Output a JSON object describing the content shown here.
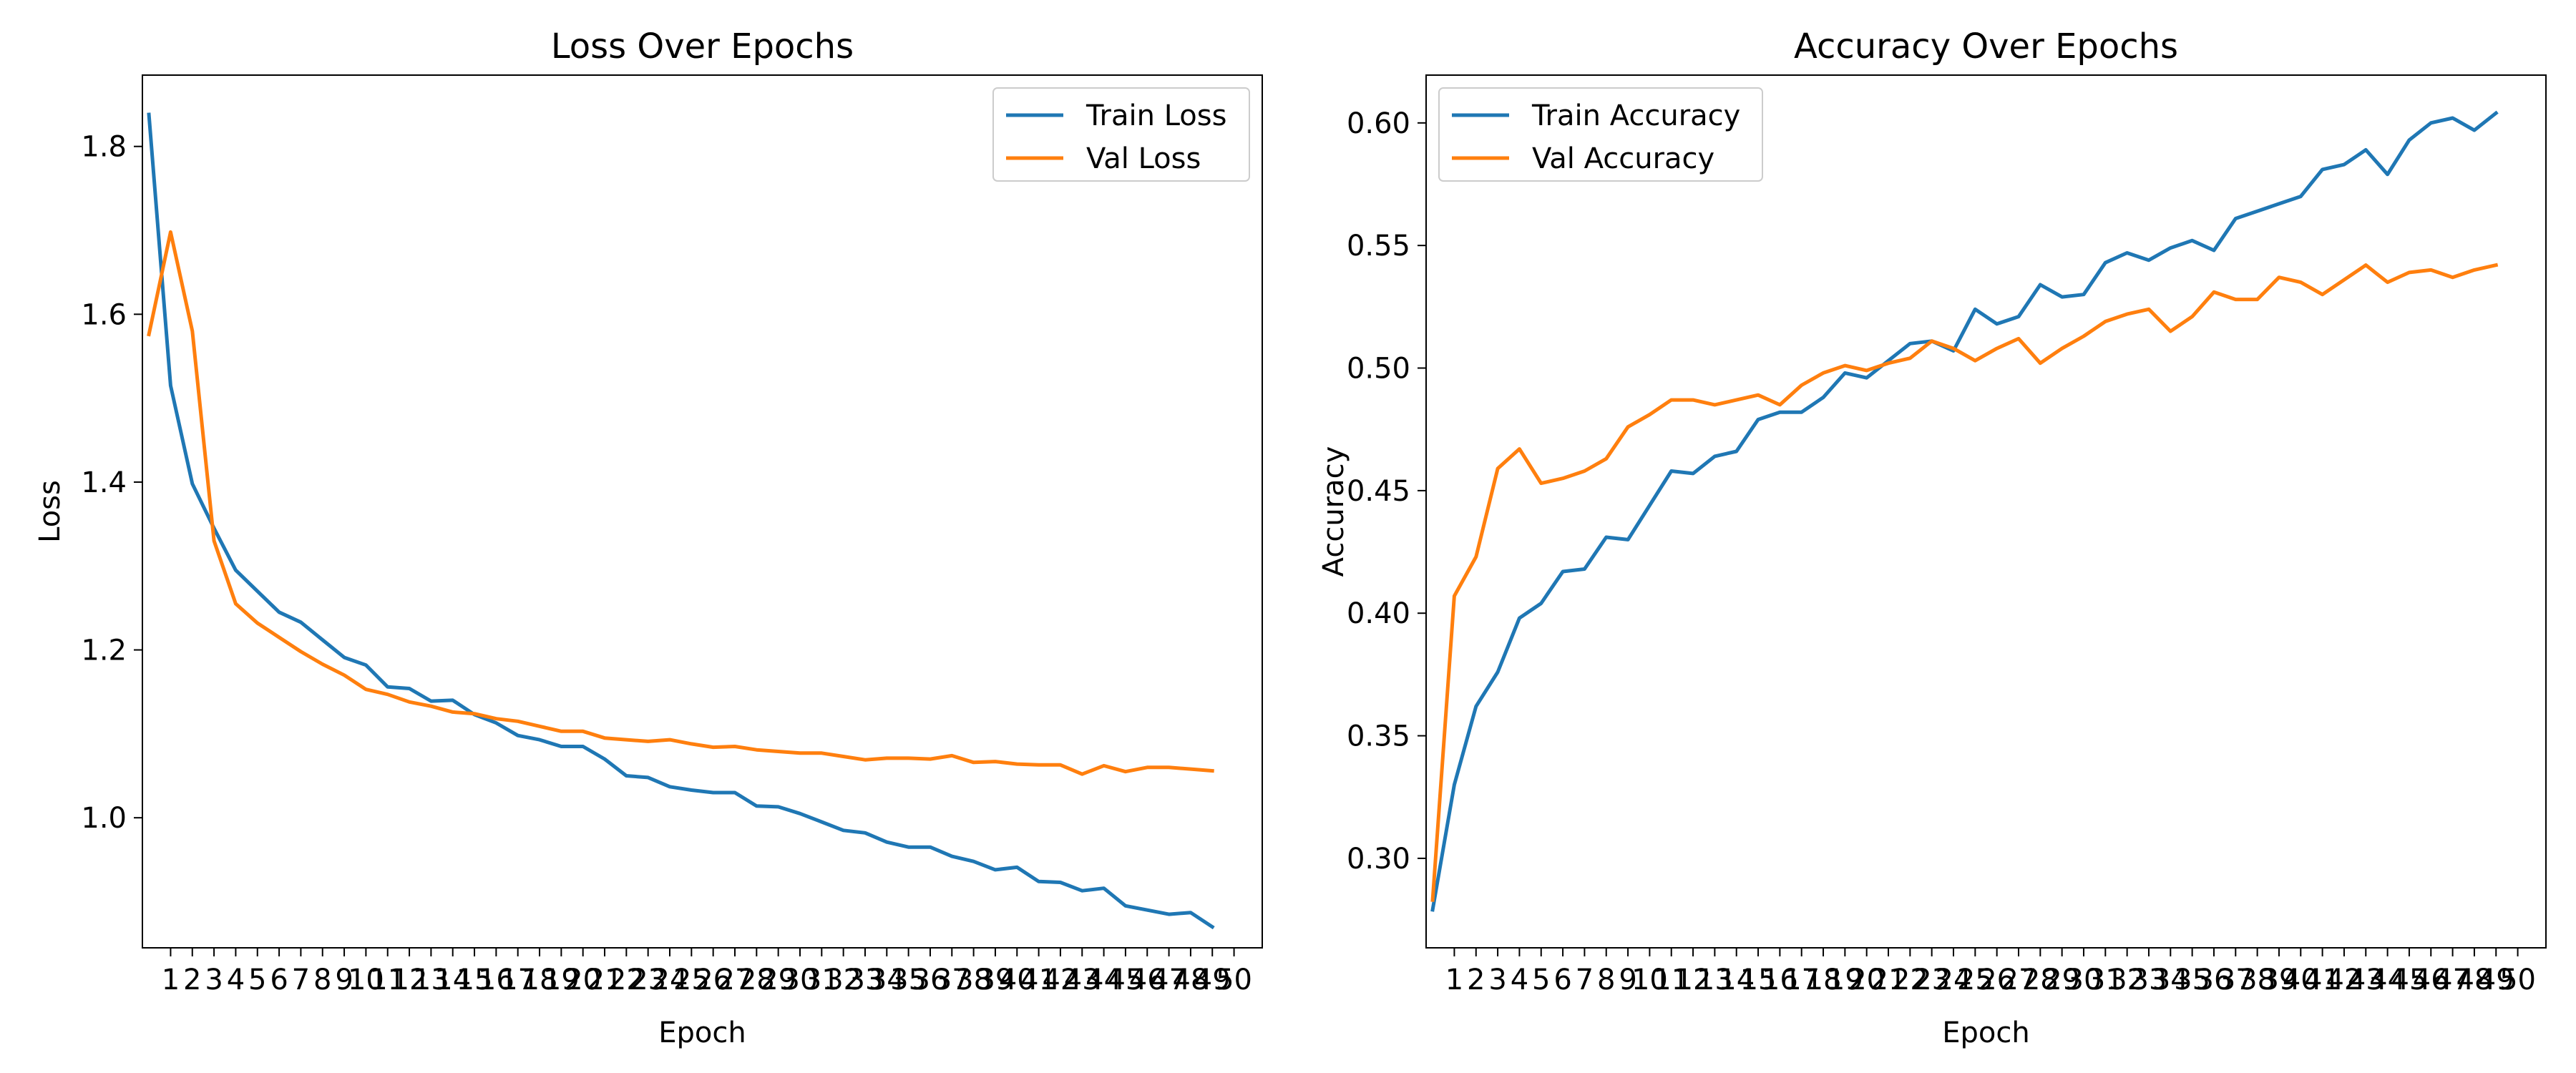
{
  "chart_data": [
    {
      "type": "line",
      "title": "Loss Over Epochs",
      "xlabel": "Epoch",
      "ylabel": "Loss",
      "xlim": [
        -0.3,
        51.3
      ],
      "ylim": [
        0.845,
        1.885
      ],
      "grid": false,
      "legend": "top-right",
      "x": [
        0,
        1,
        2,
        3,
        4,
        5,
        6,
        7,
        8,
        9,
        10,
        11,
        12,
        13,
        14,
        15,
        16,
        17,
        18,
        19,
        20,
        21,
        22,
        23,
        24,
        25,
        26,
        27,
        28,
        29,
        30,
        31,
        32,
        33,
        34,
        35,
        36,
        37,
        38,
        39,
        40,
        41,
        42,
        43,
        44,
        45,
        46,
        47,
        48,
        49
      ],
      "xticks": [
        1,
        2,
        3,
        4,
        5,
        6,
        7,
        8,
        9,
        10,
        11,
        12,
        13,
        14,
        15,
        16,
        17,
        18,
        19,
        20,
        21,
        22,
        23,
        24,
        25,
        26,
        27,
        28,
        29,
        30,
        31,
        32,
        33,
        34,
        35,
        36,
        37,
        38,
        39,
        40,
        41,
        42,
        43,
        44,
        45,
        46,
        47,
        48,
        49,
        50
      ],
      "yticks": [
        {
          "value": 1.0,
          "label": "1.0"
        },
        {
          "value": 1.2,
          "label": "1.2"
        },
        {
          "value": 1.4,
          "label": "1.4"
        },
        {
          "value": 1.6,
          "label": "1.6"
        },
        {
          "value": 1.8,
          "label": "1.8"
        }
      ],
      "series": [
        {
          "name": "Train Loss",
          "color": "#1f77b4",
          "values": [
            1.838,
            1.515,
            1.398,
            1.345,
            1.295,
            1.27,
            1.245,
            1.233,
            1.212,
            1.191,
            1.182,
            1.156,
            1.154,
            1.139,
            1.14,
            1.123,
            1.113,
            1.098,
            1.093,
            1.085,
            1.085,
            1.07,
            1.05,
            1.048,
            1.037,
            1.033,
            1.03,
            1.03,
            1.014,
            1.013,
            1.005,
            0.995,
            0.985,
            0.982,
            0.971,
            0.965,
            0.965,
            0.954,
            0.948,
            0.938,
            0.941,
            0.924,
            0.923,
            0.913,
            0.916,
            0.895,
            0.89,
            0.885,
            0.887,
            0.87
          ]
        },
        {
          "name": "Val Loss",
          "color": "#ff7f0e",
          "values": [
            1.576,
            1.698,
            1.58,
            1.33,
            1.255,
            1.232,
            1.215,
            1.198,
            1.183,
            1.17,
            1.153,
            1.147,
            1.138,
            1.133,
            1.126,
            1.124,
            1.118,
            1.115,
            1.109,
            1.103,
            1.103,
            1.095,
            1.093,
            1.091,
            1.093,
            1.088,
            1.084,
            1.085,
            1.081,
            1.079,
            1.077,
            1.077,
            1.073,
            1.069,
            1.071,
            1.071,
            1.07,
            1.074,
            1.066,
            1.067,
            1.064,
            1.063,
            1.063,
            1.052,
            1.062,
            1.055,
            1.06,
            1.06,
            1.058,
            1.056
          ]
        }
      ]
    },
    {
      "type": "line",
      "title": "Accuracy Over Epochs",
      "xlabel": "Epoch",
      "ylabel": "Accuracy",
      "xlim": [
        -0.3,
        51.3
      ],
      "ylim": [
        0.2635,
        0.6195
      ],
      "grid": false,
      "legend": "top-left",
      "x": [
        0,
        1,
        2,
        3,
        4,
        5,
        6,
        7,
        8,
        9,
        10,
        11,
        12,
        13,
        14,
        15,
        16,
        17,
        18,
        19,
        20,
        21,
        22,
        23,
        24,
        25,
        26,
        27,
        28,
        29,
        30,
        31,
        32,
        33,
        34,
        35,
        36,
        37,
        38,
        39,
        40,
        41,
        42,
        43,
        44,
        45,
        46,
        47,
        48,
        49
      ],
      "xticks": [
        1,
        2,
        3,
        4,
        5,
        6,
        7,
        8,
        9,
        10,
        11,
        12,
        13,
        14,
        15,
        16,
        17,
        18,
        19,
        20,
        21,
        22,
        23,
        24,
        25,
        26,
        27,
        28,
        29,
        30,
        31,
        32,
        33,
        34,
        35,
        36,
        37,
        38,
        39,
        40,
        41,
        42,
        43,
        44,
        45,
        46,
        47,
        48,
        49,
        50
      ],
      "yticks": [
        {
          "value": 0.3,
          "label": "0.30"
        },
        {
          "value": 0.35,
          "label": "0.35"
        },
        {
          "value": 0.4,
          "label": "0.40"
        },
        {
          "value": 0.45,
          "label": "0.45"
        },
        {
          "value": 0.5,
          "label": "0.50"
        },
        {
          "value": 0.55,
          "label": "0.55"
        },
        {
          "value": 0.6,
          "label": "0.60"
        }
      ],
      "series": [
        {
          "name": "Train Accuracy",
          "color": "#1f77b4",
          "values": [
            0.279,
            0.33,
            0.362,
            0.376,
            0.398,
            0.404,
            0.417,
            0.418,
            0.431,
            0.43,
            0.444,
            0.458,
            0.457,
            0.464,
            0.466,
            0.479,
            0.482,
            0.482,
            0.488,
            0.498,
            0.496,
            0.503,
            0.51,
            0.511,
            0.507,
            0.524,
            0.518,
            0.521,
            0.534,
            0.529,
            0.53,
            0.543,
            0.547,
            0.544,
            0.549,
            0.552,
            0.548,
            0.561,
            0.564,
            0.567,
            0.57,
            0.581,
            0.583,
            0.589,
            0.579,
            0.593,
            0.6,
            0.602,
            0.597,
            0.604
          ]
        },
        {
          "name": "Val Accuracy",
          "color": "#ff7f0e",
          "values": [
            0.283,
            0.407,
            0.423,
            0.459,
            0.467,
            0.453,
            0.455,
            0.458,
            0.463,
            0.476,
            0.481,
            0.487,
            0.487,
            0.485,
            0.487,
            0.489,
            0.485,
            0.493,
            0.498,
            0.501,
            0.499,
            0.502,
            0.504,
            0.511,
            0.508,
            0.503,
            0.508,
            0.512,
            0.502,
            0.508,
            0.513,
            0.519,
            0.522,
            0.524,
            0.515,
            0.521,
            0.531,
            0.528,
            0.528,
            0.537,
            0.535,
            0.53,
            0.536,
            0.542,
            0.535,
            0.539,
            0.54,
            0.537,
            0.54,
            0.542
          ]
        }
      ]
    }
  ]
}
